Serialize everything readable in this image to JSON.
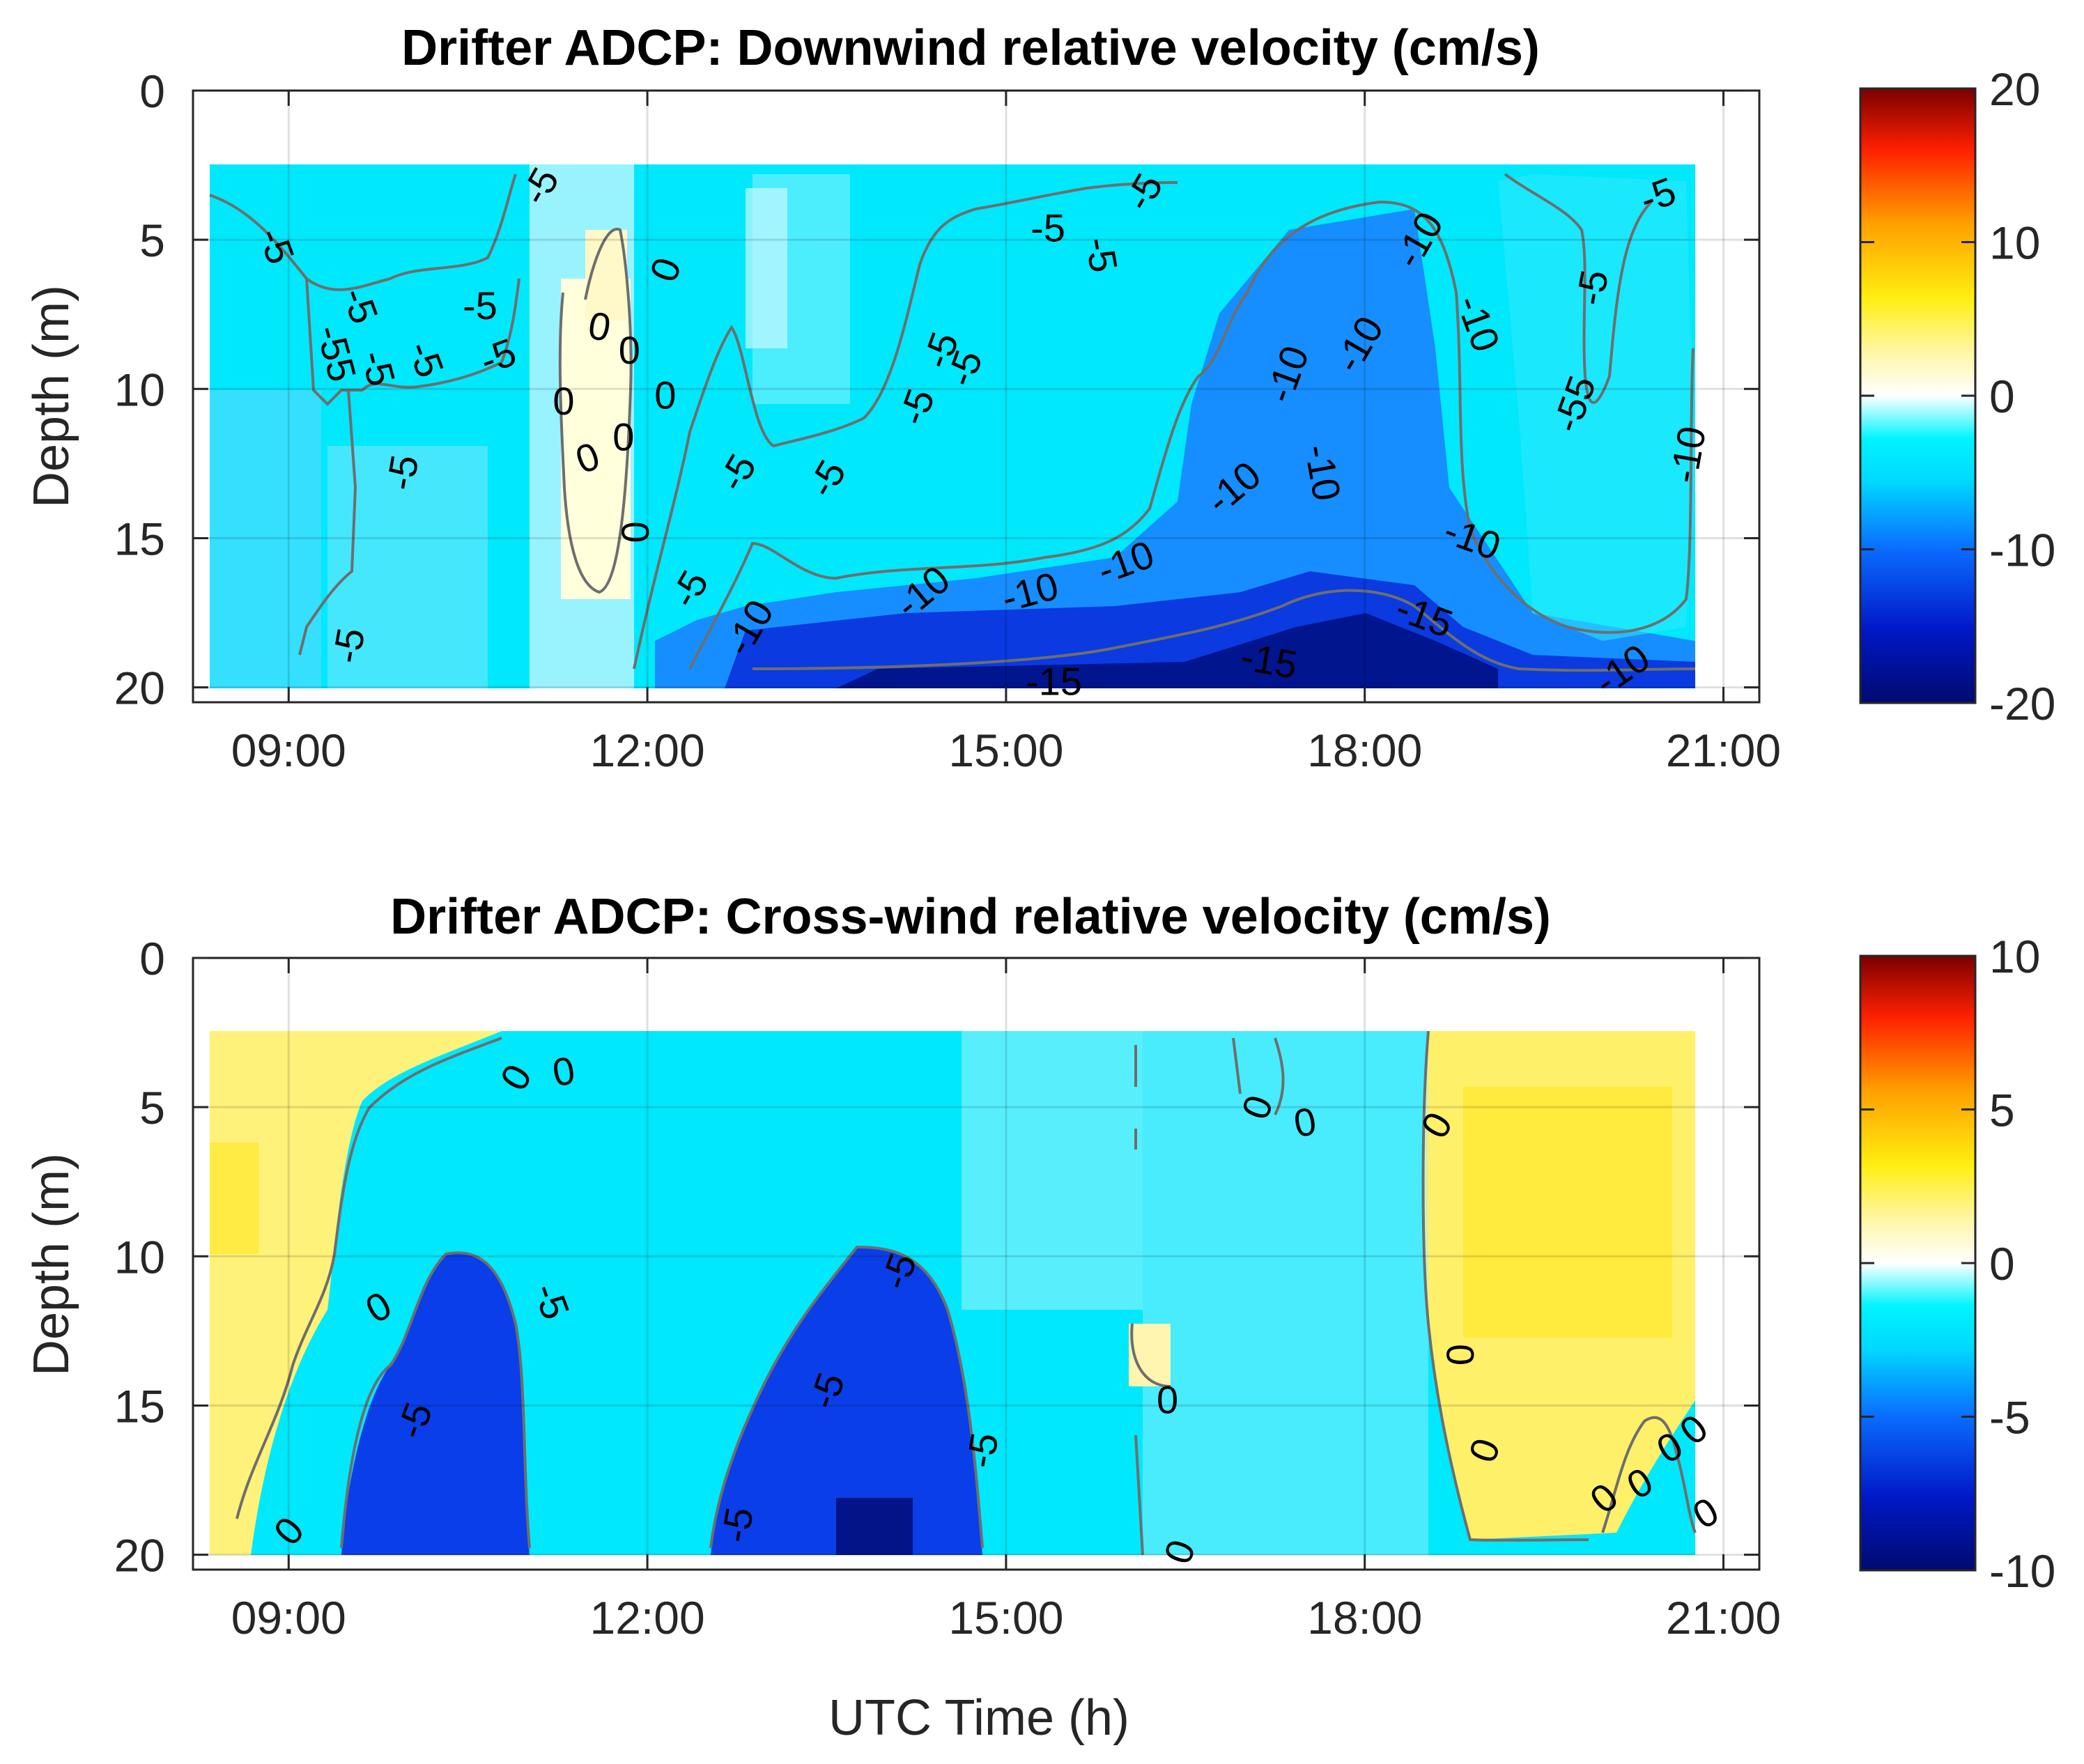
{
  "chart_data": [
    {
      "type": "heatmap",
      "title": "Drifter ADCP: Downwind relative velocity (cm/s)",
      "xlabel": "",
      "ylabel": "Depth (m)",
      "x_tick_labels": [
        "09:00",
        "12:00",
        "15:00",
        "18:00",
        "21:00"
      ],
      "x_ticks_hours": [
        9,
        12,
        15,
        18,
        21
      ],
      "xlim_hours": [
        8.2,
        21.3
      ],
      "y_tick_labels": [
        "0",
        "5",
        "10",
        "15",
        "20"
      ],
      "y_ticks": [
        0,
        5,
        10,
        15,
        20
      ],
      "ylim": [
        0,
        20.5
      ],
      "ydir": "reverse",
      "data_extent": {
        "time_hours": [
          8.7,
          20.85
        ],
        "depth_m": [
          2.5,
          20.5
        ]
      },
      "colorbar": {
        "range": [
          -20,
          20
        ],
        "tick_labels": [
          "20",
          "10",
          "0",
          "-10",
          "-20"
        ],
        "ticks": [
          20,
          10,
          0,
          -10,
          -20
        ]
      },
      "contour_levels": [
        -15,
        -10,
        -5,
        0
      ],
      "contour_labels": [
        {
          "text": "-5",
          "t": 8.9,
          "d": 5.2,
          "rot": 70
        },
        {
          "text": "-5",
          "t": 9.6,
          "d": 7.2,
          "rot": 70
        },
        {
          "text": "-55",
          "t": 9.4,
          "d": 8.8,
          "rot": 75
        },
        {
          "text": "-5",
          "t": 9.75,
          "d": 9.3,
          "rot": 75
        },
        {
          "text": "-5",
          "t": 10.15,
          "d": 9.0,
          "rot": 70
        },
        {
          "text": "-5",
          "t": 10.6,
          "d": 7.2,
          "rot": 0
        },
        {
          "text": "-5",
          "t": 10.75,
          "d": 8.9,
          "rot": -20
        },
        {
          "text": "-5",
          "t": 11.1,
          "d": 3.2,
          "rot": -60
        },
        {
          "text": "-5",
          "t": 9.95,
          "d": 12.8,
          "rot": -80
        },
        {
          "text": "-5",
          "t": 9.5,
          "d": 18.6,
          "rot": -80
        },
        {
          "text": "0",
          "t": 11.6,
          "d": 7.9,
          "rot": 10
        },
        {
          "text": "0",
          "t": 11.85,
          "d": 8.7,
          "rot": 0
        },
        {
          "text": "0",
          "t": 12.15,
          "d": 6.0,
          "rot": -70
        },
        {
          "text": "0",
          "t": 11.3,
          "d": 10.4,
          "rot": 0
        },
        {
          "text": "0",
          "t": 12.15,
          "d": 10.2,
          "rot": 0
        },
        {
          "text": "0",
          "t": 11.5,
          "d": 12.3,
          "rot": -20
        },
        {
          "text": "0",
          "t": 11.8,
          "d": 11.6,
          "rot": 0
        },
        {
          "text": "0",
          "t": 11.9,
          "d": 14.8,
          "rot": 90
        },
        {
          "text": "-5",
          "t": 12.35,
          "d": 16.7,
          "rot": -60
        },
        {
          "text": "-5",
          "t": 12.75,
          "d": 12.8,
          "rot": -60
        },
        {
          "text": "-5",
          "t": 13.5,
          "d": 13.0,
          "rot": -60
        },
        {
          "text": "-5",
          "t": 14.25,
          "d": 10.6,
          "rot": -70
        },
        {
          "text": "-5",
          "t": 14.45,
          "d": 8.7,
          "rot": -70
        },
        {
          "text": "-5",
          "t": 14.65,
          "d": 9.3,
          "rot": -70
        },
        {
          "text": "-5",
          "t": 15.35,
          "d": 4.6,
          "rot": 0
        },
        {
          "text": "-5",
          "t": 15.8,
          "d": 5.5,
          "rot": 80
        },
        {
          "text": "-5",
          "t": 16.15,
          "d": 3.4,
          "rot": -60
        },
        {
          "text": "-10",
          "t": 12.85,
          "d": 18.0,
          "rot": -60
        },
        {
          "text": "-10",
          "t": 14.3,
          "d": 16.8,
          "rot": -40
        },
        {
          "text": "-10",
          "t": 15.2,
          "d": 16.8,
          "rot": -15
        },
        {
          "text": "-10",
          "t": 16.0,
          "d": 15.8,
          "rot": -20
        },
        {
          "text": "-10",
          "t": 16.9,
          "d": 13.3,
          "rot": -40
        },
        {
          "text": "-10",
          "t": 17.35,
          "d": 9.5,
          "rot": -70
        },
        {
          "text": "-10",
          "t": 17.65,
          "d": 12.8,
          "rot": 80
        },
        {
          "text": "-10",
          "t": 17.95,
          "d": 8.5,
          "rot": -60
        },
        {
          "text": "-10",
          "t": 18.45,
          "d": 5.0,
          "rot": -60
        },
        {
          "text": "-10",
          "t": 18.95,
          "d": 7.8,
          "rot": 70
        },
        {
          "text": "-10",
          "t": 18.9,
          "d": 15.0,
          "rot": 20
        },
        {
          "text": "-10",
          "t": 20.15,
          "d": 19.4,
          "rot": -35
        },
        {
          "text": "-10",
          "t": 20.7,
          "d": 12.2,
          "rot": -80
        },
        {
          "text": "-15",
          "t": 15.4,
          "d": 19.8,
          "rot": 0
        },
        {
          "text": "-15",
          "t": 17.2,
          "d": 19.1,
          "rot": 10
        },
        {
          "text": "-15",
          "t": 18.5,
          "d": 17.6,
          "rot": 20
        },
        {
          "text": "-5",
          "t": 20.45,
          "d": 3.5,
          "rot": -20
        },
        {
          "text": "-5",
          "t": 19.9,
          "d": 6.6,
          "rot": -80
        },
        {
          "text": "-55",
          "t": 19.75,
          "d": 10.5,
          "rot": -70
        }
      ]
    },
    {
      "type": "heatmap",
      "title": "Drifter ADCP: Cross-wind relative velocity (cm/s)",
      "xlabel": "UTC Time (h)",
      "ylabel": "Depth (m)",
      "x_tick_labels": [
        "09:00",
        "12:00",
        "15:00",
        "18:00",
        "21:00"
      ],
      "x_ticks_hours": [
        9,
        12,
        15,
        18,
        21
      ],
      "xlim_hours": [
        8.2,
        21.3
      ],
      "y_tick_labels": [
        "0",
        "5",
        "10",
        "15",
        "20"
      ],
      "y_ticks": [
        0,
        5,
        10,
        15,
        20
      ],
      "ylim": [
        0,
        20.5
      ],
      "ydir": "reverse",
      "data_extent": {
        "time_hours": [
          8.7,
          20.85
        ],
        "depth_m": [
          2.5,
          20.5
        ]
      },
      "colorbar": {
        "range": [
          -10,
          10
        ],
        "tick_labels": [
          "10",
          "5",
          "0",
          "-5",
          "-10"
        ],
        "ticks": [
          10,
          5,
          0,
          -5,
          -10
        ]
      },
      "contour_levels": [
        -5,
        0
      ],
      "contour_labels": [
        {
          "text": "0",
          "t": 10.9,
          "d": 4.0,
          "rot": -60
        },
        {
          "text": "0",
          "t": 11.3,
          "d": 3.8,
          "rot": -10
        },
        {
          "text": "0",
          "t": 9.75,
          "d": 11.7,
          "rot": -30
        },
        {
          "text": "0",
          "t": 9.0,
          "d": 19.2,
          "rot": -50
        },
        {
          "text": "-5",
          "t": 10.05,
          "d": 15.5,
          "rot": -70
        },
        {
          "text": "-5",
          "t": 11.2,
          "d": 11.5,
          "rot": 70
        },
        {
          "text": "-5",
          "t": 12.75,
          "d": 19.0,
          "rot": -80
        },
        {
          "text": "-5",
          "t": 13.5,
          "d": 14.5,
          "rot": -70
        },
        {
          "text": "-5",
          "t": 14.1,
          "d": 10.5,
          "rot": -70
        },
        {
          "text": "-5",
          "t": 14.8,
          "d": 16.5,
          "rot": -80
        },
        {
          "text": "0",
          "t": 16.35,
          "d": 14.8,
          "rot": 0
        },
        {
          "text": "0",
          "t": 16.45,
          "d": 19.9,
          "rot": -70
        },
        {
          "text": "0",
          "t": 17.1,
          "d": 5.0,
          "rot": -70
        },
        {
          "text": "0",
          "t": 17.5,
          "d": 5.5,
          "rot": -10
        },
        {
          "text": "0",
          "t": 18.6,
          "d": 5.6,
          "rot": -60
        },
        {
          "text": "0",
          "t": 18.8,
          "d": 13.3,
          "rot": 90
        },
        {
          "text": "0",
          "t": 19.0,
          "d": 16.5,
          "rot": -70
        },
        {
          "text": "0",
          "t": 20.0,
          "d": 18.1,
          "rot": -40
        },
        {
          "text": "0",
          "t": 20.3,
          "d": 17.6,
          "rot": -30
        },
        {
          "text": "0",
          "t": 20.55,
          "d": 16.4,
          "rot": -30
        },
        {
          "text": "0",
          "t": 20.75,
          "d": 15.8,
          "rot": -40
        },
        {
          "text": "0",
          "t": 20.85,
          "d": 18.6,
          "rot": -30
        }
      ]
    }
  ]
}
